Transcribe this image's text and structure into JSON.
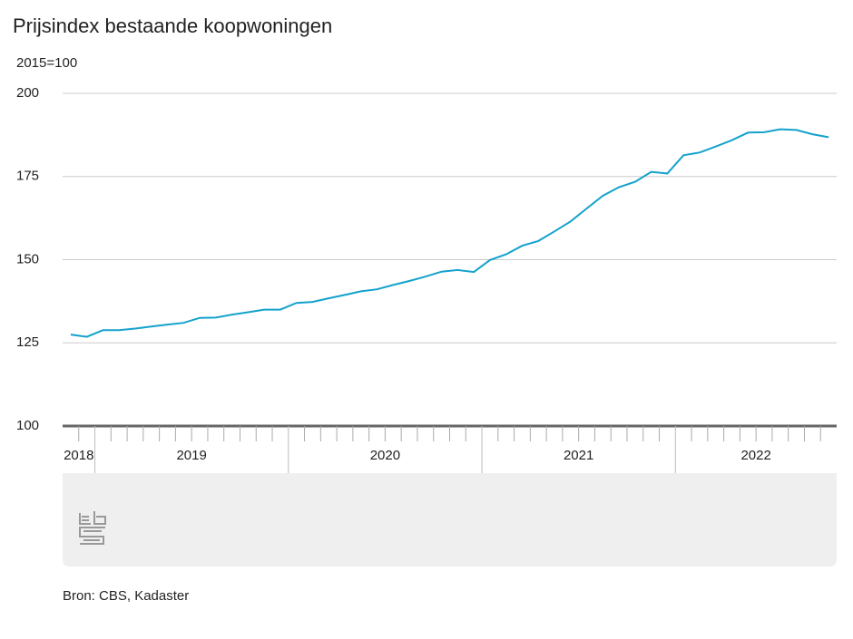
{
  "chart_data": {
    "type": "line",
    "title": "Prijsindex bestaande koopwoningen",
    "subtitle": "2015=100",
    "source": "Bron: CBS, Kadaster",
    "groups": [
      {
        "label": "2018",
        "months": 2
      },
      {
        "label": "2019",
        "months": 12
      },
      {
        "label": "2020",
        "months": 12
      },
      {
        "label": "2021",
        "months": 12
      },
      {
        "label": "2022",
        "months": 10
      }
    ],
    "values": [
      127.5,
      126.8,
      128.8,
      128.8,
      129.3,
      129.9,
      130.5,
      131.0,
      132.5,
      132.6,
      133.5,
      134.2,
      135.0,
      135.0,
      137.0,
      137.3,
      138.4,
      139.4,
      140.5,
      141.1,
      142.4,
      143.6,
      144.9,
      146.4,
      146.9,
      146.3,
      149.9,
      151.6,
      154.2,
      155.6,
      158.5,
      161.5,
      165.4,
      169.2,
      171.8,
      173.4,
      176.4,
      175.9,
      181.4,
      182.2,
      184.0,
      185.9,
      188.2,
      188.3,
      189.2,
      189.0,
      187.7,
      186.8
    ],
    "color": "#14a2cc",
    "ylim": [
      100,
      200
    ],
    "yticks": [
      100,
      125,
      150,
      175,
      200
    ],
    "grid": true
  }
}
